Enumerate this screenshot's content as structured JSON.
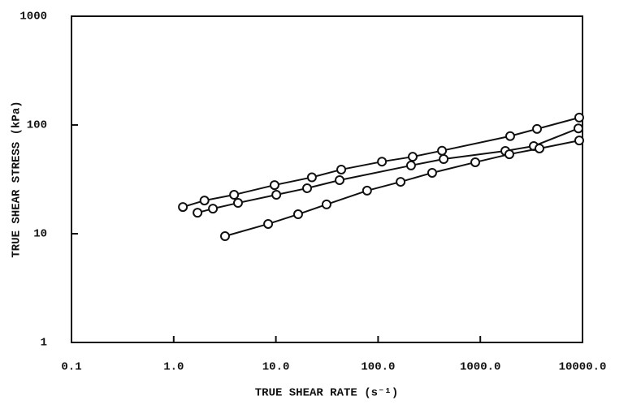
{
  "chart_data": {
    "type": "line",
    "x_label": "TRUE SHEAR RATE (s⁻¹)",
    "y_label": "TRUE SHEAR STRESS (kPa)",
    "xscale": "log",
    "yscale": "log",
    "xlim": [
      0.1,
      10000
    ],
    "ylim": [
      1,
      1000
    ],
    "xticks": [
      0.1,
      {
        "value": 1,
        "label": "1.0"
      },
      {
        "value": 10,
        "label": "10.0"
      },
      {
        "value": 100,
        "label": "100.0"
      },
      {
        "value": 1000,
        "label": "1000.0"
      },
      {
        "value": 10000,
        "label": "10000.0"
      }
    ],
    "yticks": [
      1,
      10,
      100,
      1000
    ],
    "grid": false,
    "markers": "open-circle",
    "series": [
      {
        "color": "#111111",
        "x": [
          1.23,
          2.0,
          3.9,
          9.7,
          22.5,
          43.6,
          109,
          218,
          422,
          1960,
          3590,
          9290
        ],
        "values": [
          17.6,
          20.2,
          22.8,
          28,
          33,
          38.9,
          46,
          51,
          58,
          79,
          92,
          117
        ]
      },
      {
        "color": "#111111",
        "x": [
          1.71,
          2.42,
          4.26,
          10.1,
          20.2,
          42,
          210,
          438,
          1758,
          3335,
          9120
        ],
        "values": [
          15.6,
          17,
          19.2,
          22.8,
          26.2,
          31.1,
          42.4,
          48.6,
          57.7,
          64,
          93
        ]
      },
      {
        "color": "#111111",
        "x": [
          3.18,
          8.4,
          16.5,
          31.3,
          78,
          166,
          338,
          893,
          1925,
          3790,
          9290
        ],
        "values": [
          9.5,
          12.3,
          15.1,
          18.6,
          24.9,
          30,
          36.3,
          45.4,
          53.8,
          60.8,
          72
        ]
      }
    ]
  }
}
